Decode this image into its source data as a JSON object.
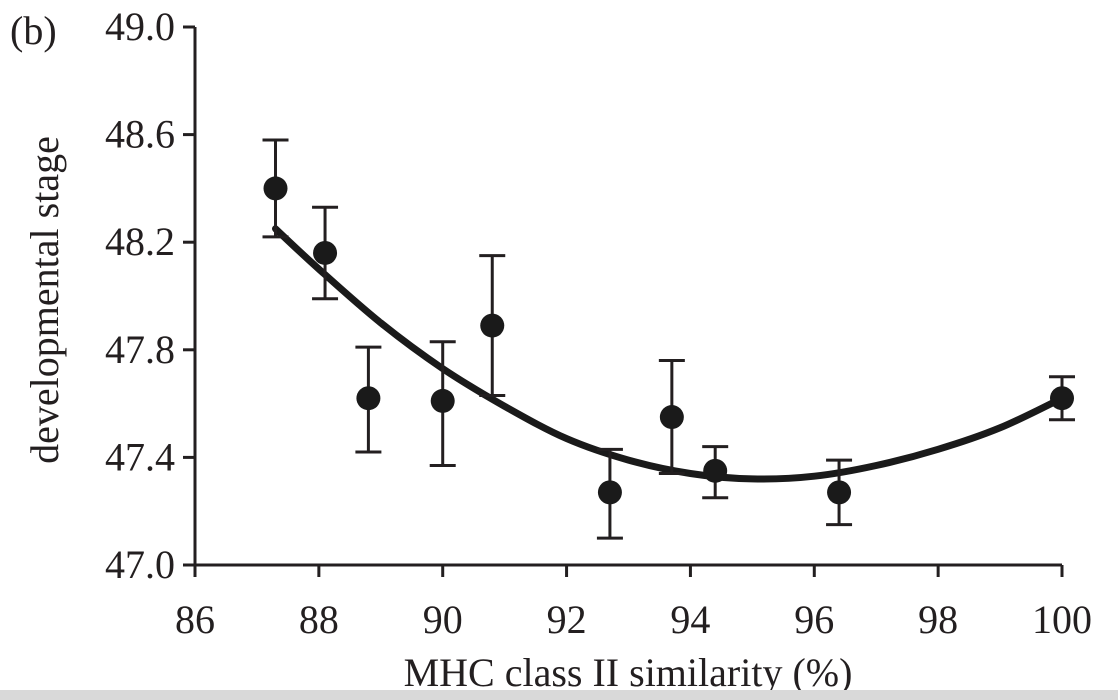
{
  "panel_label": "(b)",
  "chart_data": {
    "type": "scatter",
    "title": "",
    "xlabel": "MHC class II similarity (%)",
    "ylabel": "developmental stage",
    "xlim": [
      86,
      100
    ],
    "ylim": [
      47.0,
      49.0
    ],
    "x_ticks": [
      "86",
      "88",
      "90",
      "92",
      "94",
      "96",
      "98",
      "100"
    ],
    "y_ticks": [
      "47.0",
      "47.4",
      "47.8",
      "48.2",
      "48.6",
      "49.0"
    ],
    "grid": false,
    "legend": "none",
    "points": [
      {
        "x": 87.3,
        "y": 48.4,
        "err_low": 48.22,
        "err_high": 48.58
      },
      {
        "x": 88.1,
        "y": 48.16,
        "err_low": 47.99,
        "err_high": 48.33
      },
      {
        "x": 88.8,
        "y": 47.62,
        "err_low": 47.42,
        "err_high": 47.81
      },
      {
        "x": 90.0,
        "y": 47.61,
        "err_low": 47.37,
        "err_high": 47.83
      },
      {
        "x": 90.8,
        "y": 47.89,
        "err_low": 47.63,
        "err_high": 48.15
      },
      {
        "x": 92.7,
        "y": 47.27,
        "err_low": 47.1,
        "err_high": 47.43
      },
      {
        "x": 93.7,
        "y": 47.55,
        "err_low": 47.34,
        "err_high": 47.76
      },
      {
        "x": 94.4,
        "y": 47.35,
        "err_low": 47.25,
        "err_high": 47.44
      },
      {
        "x": 96.4,
        "y": 47.27,
        "err_low": 47.15,
        "err_high": 47.39
      },
      {
        "x": 100.0,
        "y": 47.62,
        "err_low": 47.54,
        "err_high": 47.7
      }
    ],
    "fit_curve": {
      "type": "quadratic",
      "x": [
        87.3,
        88.0,
        89.0,
        90.0,
        91.0,
        92.0,
        93.0,
        94.0,
        95.0,
        96.0,
        97.0,
        98.0,
        99.0,
        100.0
      ],
      "y": [
        48.25,
        48.1,
        47.9,
        47.73,
        47.59,
        47.47,
        47.39,
        47.34,
        47.32,
        47.33,
        47.37,
        47.43,
        47.51,
        47.62
      ]
    },
    "colors": {
      "ink": "#231f20",
      "marker": "#1a1a1a"
    }
  }
}
